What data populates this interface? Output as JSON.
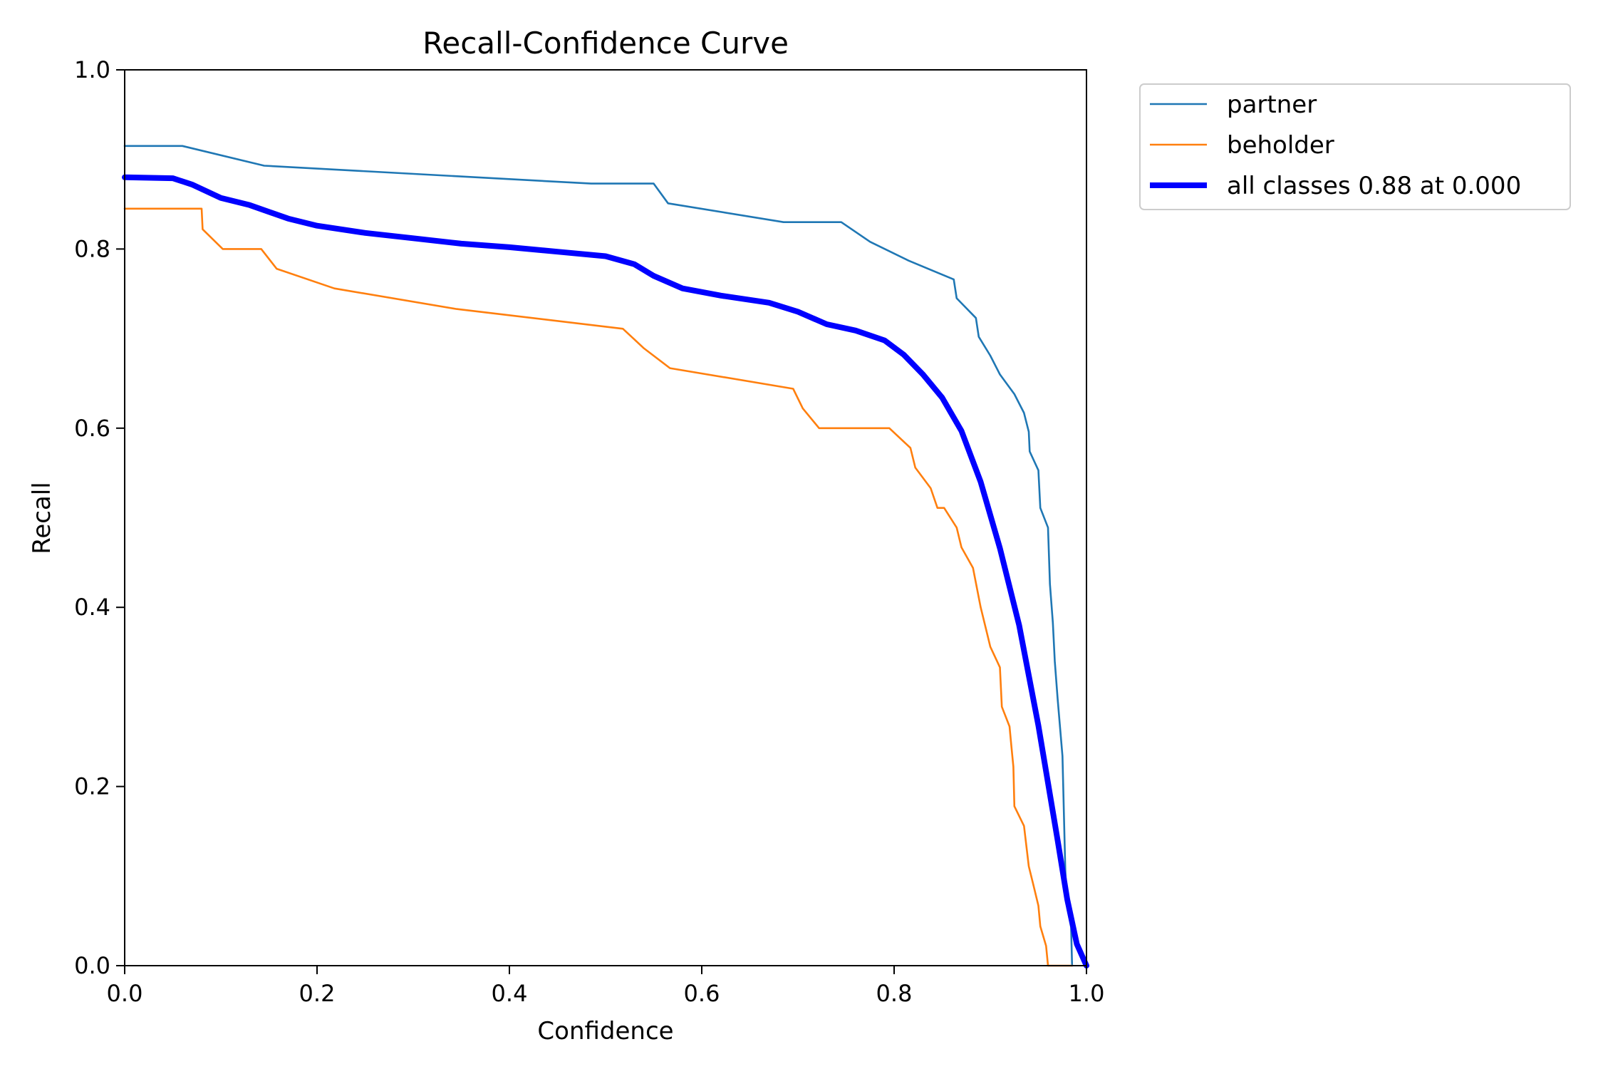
{
  "chart_data": {
    "type": "line",
    "title": "Recall-Confidence Curve",
    "xlabel": "Confidence",
    "ylabel": "Recall",
    "xlim": [
      0.0,
      1.0
    ],
    "ylim": [
      0.0,
      1.0
    ],
    "xticks": [
      "0.0",
      "0.2",
      "0.4",
      "0.6",
      "0.8",
      "1.0"
    ],
    "yticks": [
      "0.0",
      "0.2",
      "0.4",
      "0.6",
      "0.8",
      "1.0"
    ],
    "grid": false,
    "legend_position": "outside-top-right",
    "series": [
      {
        "name": "partner",
        "color": "#1f77b4",
        "width": "thin",
        "points": [
          [
            0.0,
            0.915
          ],
          [
            0.06,
            0.915
          ],
          [
            0.145,
            0.893
          ],
          [
            0.485,
            0.873
          ],
          [
            0.55,
            0.873
          ],
          [
            0.565,
            0.851
          ],
          [
            0.685,
            0.83
          ],
          [
            0.745,
            0.83
          ],
          [
            0.775,
            0.808
          ],
          [
            0.815,
            0.787
          ],
          [
            0.862,
            0.766
          ],
          [
            0.865,
            0.745
          ],
          [
            0.885,
            0.723
          ],
          [
            0.888,
            0.702
          ],
          [
            0.9,
            0.681
          ],
          [
            0.91,
            0.66
          ],
          [
            0.925,
            0.638
          ],
          [
            0.935,
            0.617
          ],
          [
            0.94,
            0.596
          ],
          [
            0.941,
            0.574
          ],
          [
            0.95,
            0.553
          ],
          [
            0.952,
            0.511
          ],
          [
            0.96,
            0.489
          ],
          [
            0.962,
            0.426
          ],
          [
            0.965,
            0.383
          ],
          [
            0.967,
            0.34
          ],
          [
            0.97,
            0.298
          ],
          [
            0.975,
            0.234
          ],
          [
            0.978,
            0.106
          ],
          [
            0.98,
            0.064
          ],
          [
            0.984,
            0.043
          ],
          [
            0.985,
            0.0
          ]
        ]
      },
      {
        "name": "beholder",
        "color": "#ff7f0e",
        "width": "thin",
        "points": [
          [
            0.0,
            0.845
          ],
          [
            0.08,
            0.845
          ],
          [
            0.081,
            0.822
          ],
          [
            0.102,
            0.8
          ],
          [
            0.142,
            0.8
          ],
          [
            0.158,
            0.778
          ],
          [
            0.218,
            0.756
          ],
          [
            0.345,
            0.733
          ],
          [
            0.518,
            0.711
          ],
          [
            0.54,
            0.689
          ],
          [
            0.567,
            0.667
          ],
          [
            0.695,
            0.644
          ],
          [
            0.705,
            0.622
          ],
          [
            0.722,
            0.6
          ],
          [
            0.795,
            0.6
          ],
          [
            0.817,
            0.578
          ],
          [
            0.822,
            0.556
          ],
          [
            0.838,
            0.533
          ],
          [
            0.845,
            0.511
          ],
          [
            0.852,
            0.511
          ],
          [
            0.865,
            0.489
          ],
          [
            0.87,
            0.467
          ],
          [
            0.882,
            0.444
          ],
          [
            0.89,
            0.4
          ],
          [
            0.895,
            0.378
          ],
          [
            0.9,
            0.356
          ],
          [
            0.91,
            0.333
          ],
          [
            0.912,
            0.289
          ],
          [
            0.92,
            0.267
          ],
          [
            0.922,
            0.244
          ],
          [
            0.924,
            0.222
          ],
          [
            0.925,
            0.178
          ],
          [
            0.935,
            0.156
          ],
          [
            0.94,
            0.111
          ],
          [
            0.945,
            0.089
          ],
          [
            0.95,
            0.067
          ],
          [
            0.952,
            0.044
          ],
          [
            0.958,
            0.022
          ],
          [
            0.96,
            0.0
          ],
          [
            0.985,
            0.0
          ]
        ]
      },
      {
        "name": "all classes 0.88 at 0.000",
        "color": "#0000ff",
        "width": "thick",
        "points": [
          [
            0.0,
            0.88
          ],
          [
            0.05,
            0.879
          ],
          [
            0.07,
            0.872
          ],
          [
            0.1,
            0.857
          ],
          [
            0.13,
            0.849
          ],
          [
            0.17,
            0.834
          ],
          [
            0.2,
            0.826
          ],
          [
            0.25,
            0.818
          ],
          [
            0.3,
            0.812
          ],
          [
            0.35,
            0.806
          ],
          [
            0.4,
            0.802
          ],
          [
            0.45,
            0.797
          ],
          [
            0.5,
            0.792
          ],
          [
            0.53,
            0.783
          ],
          [
            0.55,
            0.77
          ],
          [
            0.58,
            0.756
          ],
          [
            0.62,
            0.748
          ],
          [
            0.67,
            0.74
          ],
          [
            0.7,
            0.73
          ],
          [
            0.73,
            0.716
          ],
          [
            0.76,
            0.709
          ],
          [
            0.79,
            0.698
          ],
          [
            0.81,
            0.682
          ],
          [
            0.83,
            0.66
          ],
          [
            0.85,
            0.634
          ],
          [
            0.87,
            0.597
          ],
          [
            0.89,
            0.54
          ],
          [
            0.91,
            0.466
          ],
          [
            0.93,
            0.38
          ],
          [
            0.95,
            0.268
          ],
          [
            0.97,
            0.14
          ],
          [
            0.98,
            0.074
          ],
          [
            0.99,
            0.024
          ],
          [
            1.0,
            0.0
          ]
        ]
      }
    ]
  }
}
